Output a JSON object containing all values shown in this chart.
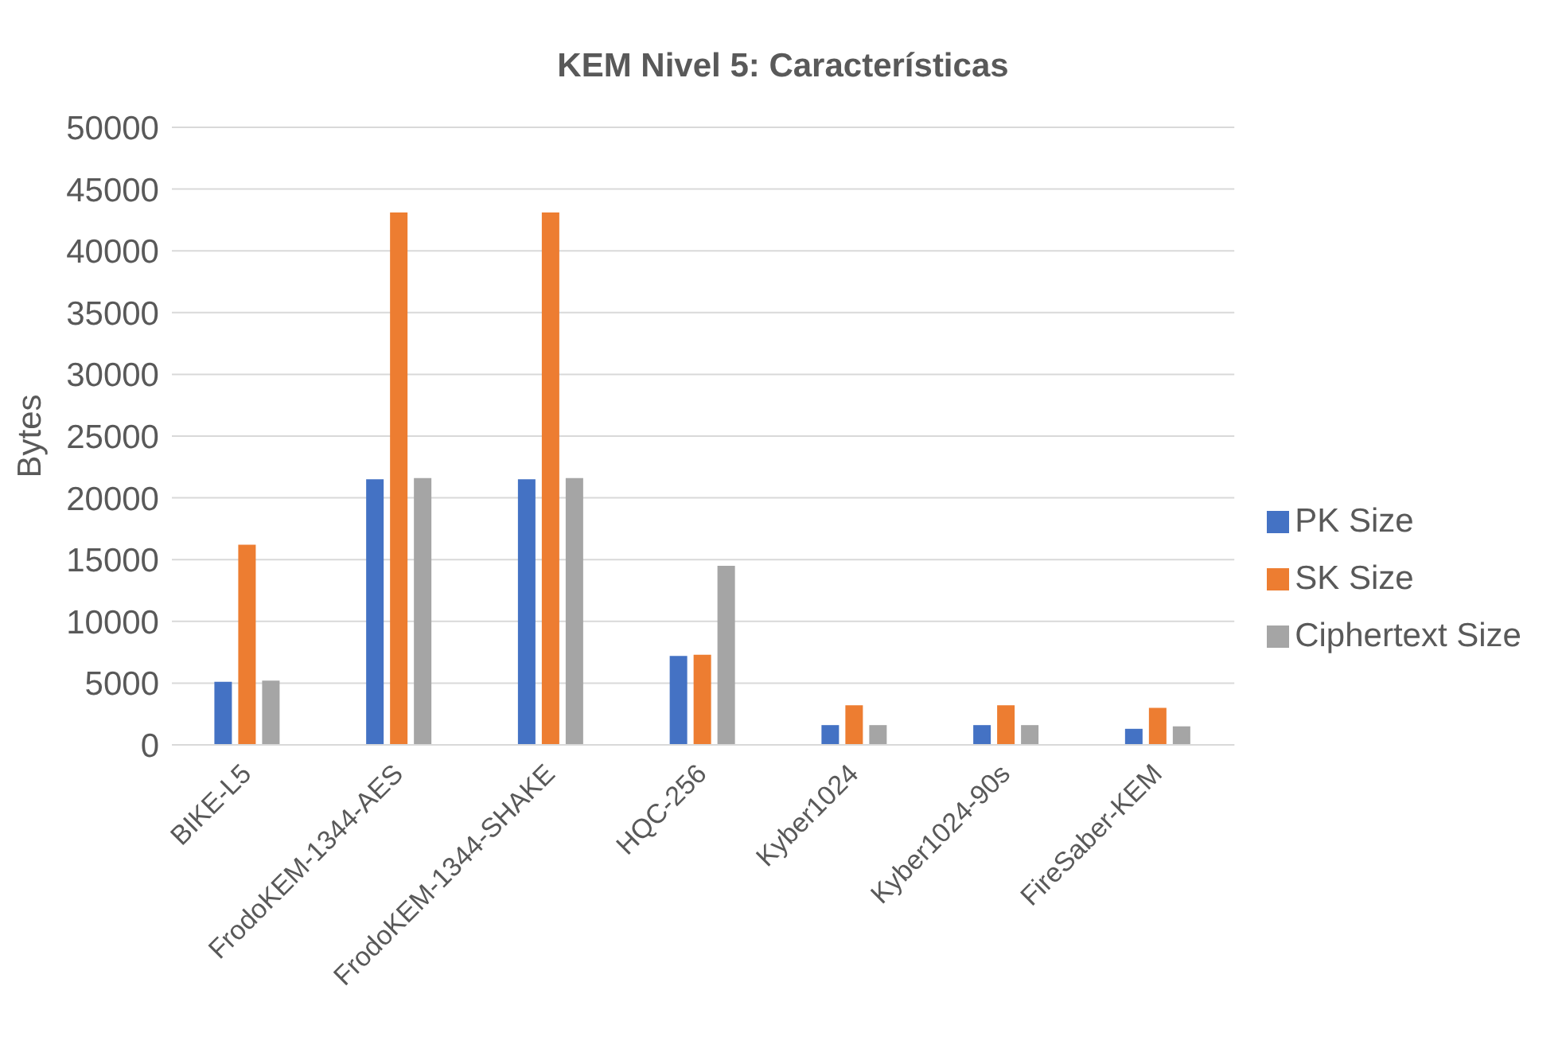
{
  "chart_data": {
    "type": "bar",
    "title": "KEM Nivel 5: Características",
    "ylabel": "Bytes",
    "categories": [
      "BIKE-L5",
      "FrodoKEM-1344-AES",
      "FrodoKEM-1344-SHAKE",
      "HQC-256",
      "Kyber1024",
      "Kyber1024-90s",
      "FireSaber-KEM"
    ],
    "series": [
      {
        "name": "PK Size",
        "color": "#4472c4",
        "values": [
          5100,
          21500,
          21500,
          7200,
          1600,
          1600,
          1300
        ]
      },
      {
        "name": "SK Size",
        "color": "#ed7d31",
        "values": [
          16200,
          43100,
          43100,
          7300,
          3200,
          3200,
          3000
        ]
      },
      {
        "name": "Ciphertext Size",
        "color": "#a5a5a5",
        "values": [
          5200,
          21600,
          21600,
          14500,
          1600,
          1600,
          1500
        ]
      }
    ],
    "ylim": [
      0,
      50000
    ],
    "yticks": [
      0,
      5000,
      10000,
      15000,
      20000,
      25000,
      30000,
      35000,
      40000,
      45000,
      50000
    ],
    "grid": "y",
    "legend": "right"
  }
}
